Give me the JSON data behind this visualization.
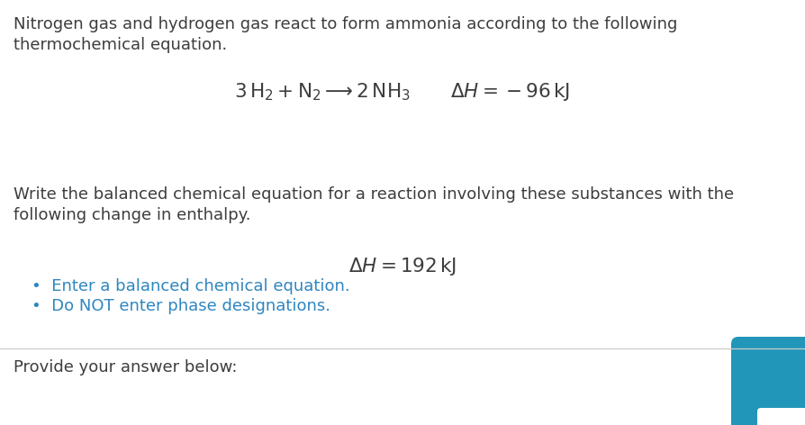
{
  "bg_color": "#ffffff",
  "text_color": "#3d3d3d",
  "blue_color": "#2e86c1",
  "line1_text": "Nitrogen gas and hydrogen gas react to form ammonia according to the following",
  "line2_text": "thermochemical equation.",
  "equation_line": "$3\\,\\mathrm{H_2} + \\mathrm{N_2} \\longrightarrow 2\\,\\mathrm{NH_3}$",
  "delta_h1": "$\\Delta H = -96\\,\\mathrm{kJ}$",
  "line3_text": "Write the balanced chemical equation for a reaction involving these substances with the",
  "line4_text": "following change in enthalpy.",
  "delta_h2": "$\\Delta H = 192\\,\\mathrm{kJ}$",
  "bullet1": "Enter a balanced chemical equation.",
  "bullet2": "Do NOT enter phase designations.",
  "footer_text": "Provide your answer below:",
  "font_size_body": 13.0,
  "font_size_eq": 15.5,
  "font_size_dh2": 15.5,
  "button_color": "#2196b8"
}
